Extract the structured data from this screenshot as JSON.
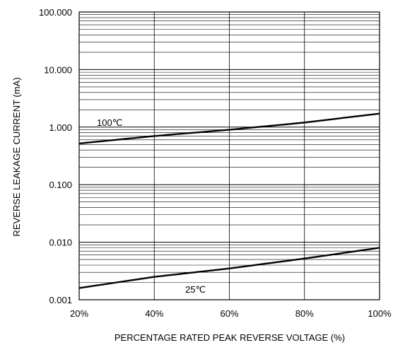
{
  "chart_data": {
    "type": "line",
    "title": "",
    "xlabel": "PERCENTAGE RATED PEAK REVERSE VOLTAGE (%)",
    "ylabel": "REVERSE LEAKAGE CURRENT (mA)",
    "x_scale": "linear",
    "y_scale": "log",
    "xlim": [
      20,
      100
    ],
    "ylim": [
      0.001,
      100
    ],
    "grid": true,
    "x_ticks": [
      20,
      40,
      60,
      80,
      100
    ],
    "x_tick_labels": [
      "20%",
      "40%",
      "60%",
      "80%",
      "100%"
    ],
    "y_ticks": [
      0.001,
      0.01,
      0.1,
      1,
      10,
      100
    ],
    "y_tick_labels": [
      "0.001",
      "0.010",
      "0.100",
      "1.000",
      "10.000",
      "100.000"
    ],
    "series": [
      {
        "name": "100℃",
        "x": [
          20,
          40,
          60,
          80,
          100
        ],
        "y": [
          0.52,
          0.7,
          0.9,
          1.2,
          1.72
        ]
      },
      {
        "name": "25℃",
        "x": [
          20,
          40,
          60,
          80,
          100
        ],
        "y": [
          0.0016,
          0.0025,
          0.0035,
          0.0052,
          0.008
        ]
      }
    ],
    "annotations": [
      "100℃",
      "25℃"
    ]
  }
}
